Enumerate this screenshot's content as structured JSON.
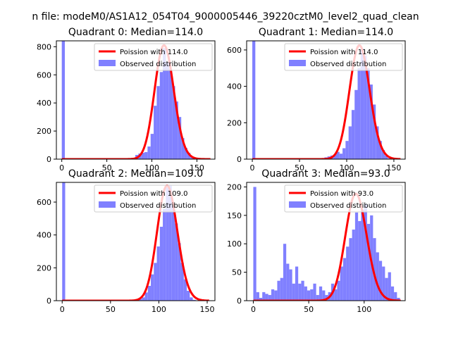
{
  "suptitle": "n file: modeM0/AS1A12_054T04_9000005446_39220cztM0_level2_quad_clean",
  "colors": {
    "hist": "#8080ff",
    "poisson": "#ff0000",
    "axis": "#000000",
    "background": "#ffffff"
  },
  "legend": {
    "observed_label": "Observed distribution"
  },
  "chart_data": [
    {
      "type": "bar",
      "title": "Quadrant 0: Median=114.0",
      "legend_poisson": "Poission with 114.0",
      "legend_placement": "top-right",
      "grid": false,
      "xlim": [
        -6,
        170
      ],
      "ylim": [
        0,
        842
      ],
      "xticks": [
        0,
        50,
        100,
        150
      ],
      "yticks": [
        0,
        200,
        400,
        600,
        800
      ],
      "bar_width": 3.4,
      "bins": [
        0,
        3.4,
        68,
        71.4,
        74.8,
        78.2,
        81.6,
        85,
        88.4,
        91.8,
        95.2,
        98.6,
        102,
        105.4,
        108.8,
        112.2,
        115.6,
        119,
        122.4,
        125.8,
        129.2,
        132.6,
        136,
        139.4,
        142.8,
        146.2,
        149.6,
        153,
        156.4,
        159.8
      ],
      "counts": [
        840,
        0,
        0,
        0,
        0,
        0,
        30,
        40,
        45,
        50,
        90,
        180,
        380,
        520,
        620,
        790,
        690,
        640,
        520,
        410,
        300,
        150,
        80,
        45,
        20,
        10,
        0,
        0,
        0,
        0
      ],
      "poisson_mean": 114.0,
      "poisson_scale": 810,
      "poisson_range": [
        0,
        165
      ]
    },
    {
      "type": "bar",
      "title": "Quadrant 1: Median=114.0",
      "legend_poisson": "Poission with 114.0",
      "legend_placement": "top-right",
      "grid": false,
      "xlim": [
        -6,
        162
      ],
      "ylim": [
        0,
        650
      ],
      "xticks": [
        0,
        50,
        100,
        150
      ],
      "yticks": [
        0,
        200,
        400,
        600
      ],
      "bar_width": 3.2,
      "bins": [
        0,
        3.2,
        35,
        70,
        73.2,
        76.4,
        79.6,
        82.8,
        86,
        89.2,
        92.4,
        95.6,
        98.8,
        102,
        105.2,
        108.4,
        111.6,
        114.8,
        118,
        121.2,
        124.4,
        127.6,
        130.8,
        134,
        137.2,
        140.4,
        143.6,
        146.8
      ],
      "counts": [
        650,
        0,
        0,
        0,
        5,
        10,
        15,
        20,
        25,
        40,
        30,
        60,
        100,
        180,
        270,
        380,
        500,
        610,
        570,
        500,
        410,
        300,
        180,
        100,
        50,
        20,
        5,
        0
      ],
      "poisson_mean": 114.0,
      "poisson_scale": 625,
      "poisson_range": [
        0,
        157
      ]
    },
    {
      "type": "bar",
      "title": "Quadrant 2: Median=109.0",
      "legend_poisson": "Poission with 109.0",
      "legend_placement": "top-right",
      "grid": false,
      "xlim": [
        -6,
        158
      ],
      "ylim": [
        0,
        720
      ],
      "xticks": [
        0,
        50,
        100,
        150
      ],
      "yticks": [
        0,
        200,
        400,
        600
      ],
      "bar_width": 3.1,
      "bins": [
        0,
        3.1,
        70,
        73.1,
        76.2,
        79.3,
        82.4,
        85.5,
        88.6,
        91.7,
        94.8,
        97.9,
        101,
        104.1,
        107.2,
        110.3,
        113.4,
        116.5,
        119.6,
        122.7,
        125.8,
        128.9,
        132,
        135.1
      ],
      "counts": [
        720,
        0,
        0,
        0,
        5,
        10,
        20,
        50,
        90,
        160,
        230,
        330,
        450,
        560,
        690,
        700,
        580,
        470,
        350,
        230,
        130,
        60,
        20,
        5
      ],
      "poisson_mean": 109.0,
      "poisson_scale": 700,
      "poisson_range": [
        0,
        152
      ]
    },
    {
      "type": "bar",
      "title": "Quadrant 3: Median=93.0",
      "legend_poisson": "Poission with 93.0",
      "legend_placement": "top-right",
      "grid": false,
      "xlim": [
        -6,
        137
      ],
      "ylim": [
        0,
        208
      ],
      "xticks": [
        0,
        50,
        100
      ],
      "yticks": [
        0,
        50,
        100,
        150,
        200
      ],
      "bar_width": 2.7,
      "bins": [
        0,
        2.7,
        5.4,
        8.1,
        10.8,
        13.5,
        16.2,
        18.9,
        21.6,
        24.3,
        27,
        29.7,
        32.4,
        35.1,
        37.8,
        40.5,
        43.2,
        45.9,
        48.6,
        51.3,
        54,
        56.7,
        59.4,
        62.1,
        64.8,
        67.5,
        70.2,
        72.9,
        75.6,
        78.3,
        81,
        83.7,
        86.4,
        89.1,
        91.8,
        94.5,
        97.2,
        99.9,
        102.6,
        105.3,
        108,
        110.7,
        113.4,
        116.1,
        118.8,
        121.5,
        124.2,
        126.9,
        129.6
      ],
      "counts": [
        200,
        15,
        5,
        15,
        12,
        10,
        20,
        18,
        35,
        40,
        100,
        65,
        55,
        30,
        60,
        30,
        35,
        25,
        18,
        20,
        30,
        10,
        25,
        18,
        10,
        15,
        30,
        20,
        35,
        60,
        75,
        95,
        110,
        125,
        155,
        140,
        160,
        170,
        135,
        150,
        110,
        85,
        70,
        60,
        40,
        50,
        25,
        15,
        5
      ],
      "poisson_mean": 93.0,
      "poisson_scale": 188,
      "poisson_range": [
        0,
        133
      ]
    }
  ]
}
